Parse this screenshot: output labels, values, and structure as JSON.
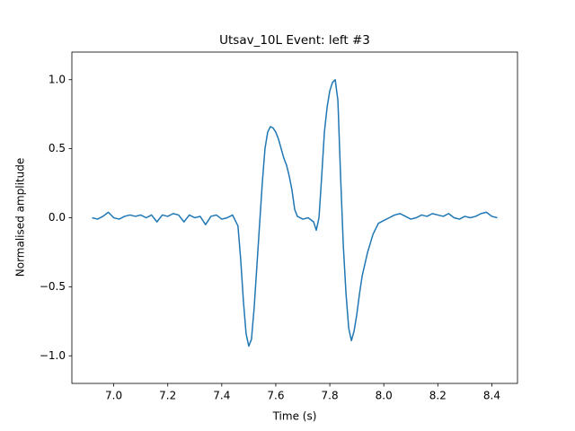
{
  "chart_data": {
    "type": "line",
    "title": "Utsav_10L Event: left #3",
    "x_label": "Time (s)",
    "y_label": "Normalised amplitude",
    "x": [
      6.92,
      6.94,
      6.96,
      6.98,
      7.0,
      7.02,
      7.04,
      7.06,
      7.08,
      7.1,
      7.12,
      7.14,
      7.16,
      7.18,
      7.2,
      7.22,
      7.24,
      7.26,
      7.28,
      7.3,
      7.32,
      7.34,
      7.36,
      7.38,
      7.4,
      7.42,
      7.44,
      7.46,
      7.47,
      7.48,
      7.49,
      7.5,
      7.51,
      7.52,
      7.53,
      7.54,
      7.55,
      7.56,
      7.57,
      7.58,
      7.59,
      7.6,
      7.61,
      7.62,
      7.63,
      7.64,
      7.65,
      7.66,
      7.67,
      7.68,
      7.7,
      7.72,
      7.74,
      7.75,
      7.76,
      7.77,
      7.78,
      7.79,
      7.8,
      7.81,
      7.82,
      7.83,
      7.84,
      7.85,
      7.86,
      7.87,
      7.88,
      7.89,
      7.9,
      7.91,
      7.92,
      7.94,
      7.96,
      7.98,
      8.0,
      8.02,
      8.04,
      8.06,
      8.08,
      8.1,
      8.12,
      8.14,
      8.16,
      8.18,
      8.2,
      8.22,
      8.24,
      8.26,
      8.28,
      8.3,
      8.32,
      8.34,
      8.36,
      8.38,
      8.4,
      8.42
    ],
    "series": [
      {
        "color": "#1f77b4",
        "values": [
          0.0,
          -0.01,
          0.01,
          0.04,
          0.0,
          -0.01,
          0.01,
          0.02,
          0.01,
          0.02,
          0.0,
          0.02,
          -0.03,
          0.02,
          0.01,
          0.03,
          0.02,
          -0.03,
          0.02,
          0.0,
          0.01,
          -0.05,
          0.01,
          0.02,
          -0.01,
          0.0,
          0.02,
          -0.06,
          -0.3,
          -0.6,
          -0.84,
          -0.93,
          -0.88,
          -0.65,
          -0.35,
          -0.05,
          0.25,
          0.5,
          0.62,
          0.66,
          0.65,
          0.62,
          0.57,
          0.5,
          0.43,
          0.38,
          0.3,
          0.2,
          0.06,
          0.01,
          -0.01,
          0.0,
          -0.03,
          -0.09,
          0.0,
          0.3,
          0.62,
          0.8,
          0.92,
          0.98,
          1.0,
          0.85,
          0.3,
          -0.2,
          -0.55,
          -0.8,
          -0.89,
          -0.82,
          -0.7,
          -0.55,
          -0.42,
          -0.25,
          -0.12,
          -0.04,
          -0.02,
          0.0,
          0.02,
          0.03,
          0.01,
          -0.01,
          0.0,
          0.02,
          0.01,
          0.03,
          0.02,
          0.01,
          0.03,
          0.0,
          -0.01,
          0.01,
          0.0,
          0.01,
          0.03,
          0.04,
          0.01,
          0.0
        ]
      }
    ],
    "xlim": [
      6.845,
      8.495
    ],
    "ylim": [
      -1.2,
      1.2
    ],
    "xticks": [
      {
        "value": 7.0,
        "label": "7.0"
      },
      7.2,
      7.4,
      7.6,
      7.8,
      {
        "value": 8.0,
        "label": "8.0"
      },
      8.2,
      8.4
    ],
    "yticks": [
      {
        "value": -1.0,
        "label": "−1.0"
      },
      {
        "value": -0.5,
        "label": "−0.5"
      },
      {
        "value": 0.0,
        "label": "0.0"
      },
      0.5,
      {
        "value": 1.0,
        "label": "1.0"
      }
    ],
    "grid": false
  }
}
